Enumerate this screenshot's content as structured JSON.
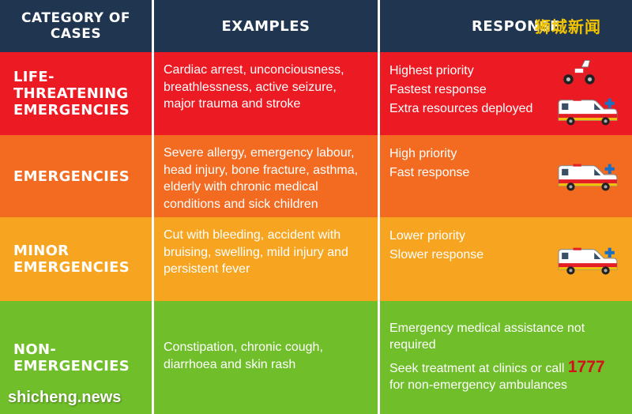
{
  "header": {
    "col1": "CATEGORY OF CASES",
    "col2": "EXAMPLES",
    "col3": "RESPONSE"
  },
  "rows": [
    {
      "category": "LIFE-THREATENING EMERGENCIES",
      "examples": "Cardiac arrest, unconciousness, breathlessness, active seizure, major trauma and stroke",
      "response": [
        "Highest priority",
        "Fastest response",
        "Extra resources deployed"
      ],
      "color": "#ec1b23",
      "icons": [
        "motorcycle-icon",
        "ambulance-icon"
      ]
    },
    {
      "category": "EMERGENCIES",
      "examples": "Severe allergy, emergency labour, head injury, bone fracture, asthma, elderly with chronic medical conditions and sick children",
      "response": [
        "High priority",
        "Fast response"
      ],
      "color": "#f26b21",
      "icons": [
        "ambulance-icon"
      ]
    },
    {
      "category": "MINOR EMERGENCIES",
      "examples": "Cut with bleeding, accident with bruising,  swelling, mild injury and persistent fever",
      "response": [
        "Lower priority",
        "Slower response"
      ],
      "color": "#f7a520",
      "icons": [
        "ambulance-icon"
      ]
    },
    {
      "category": "NON-EMERGENCIES",
      "examples": "Constipation, chronic cough, diarrhoea and skin rash",
      "response_line1": "Emergency medical assistance not required",
      "response_line2_prefix": "Seek treatment at clinics or call",
      "hotline": "1777",
      "response_line2_suffix": "for non-emergency ambulances",
      "color": "#6fbe2a"
    }
  ],
  "watermark_top": "狮城新闻",
  "watermark_bottom": "shicheng.news",
  "colors": {
    "header_bg": "#1f3550",
    "hotline": "#d4101a",
    "watermark_top": "#f5c400"
  }
}
